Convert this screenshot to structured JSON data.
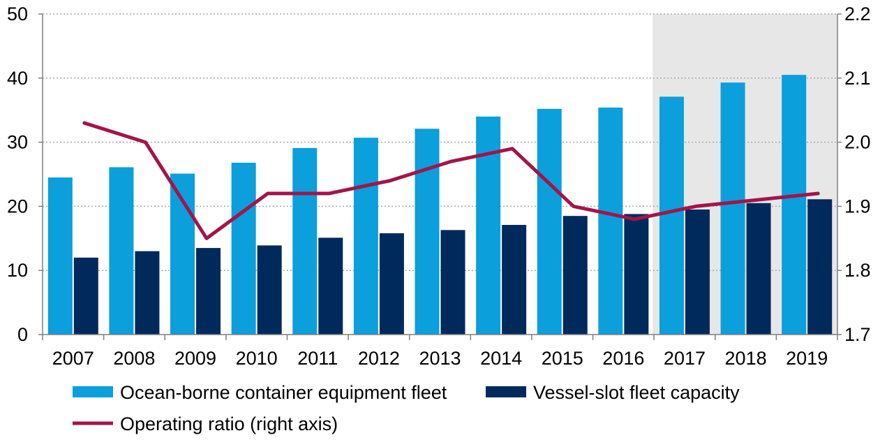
{
  "chart_data": {
    "type": "bar",
    "title": "",
    "categories": [
      "2007",
      "2008",
      "2009",
      "2010",
      "2011",
      "2012",
      "2013",
      "2014",
      "2015",
      "2016",
      "2017",
      "2018",
      "2019"
    ],
    "forecast_start_category": "2017",
    "forecast_shade_color": "#e7e7e8",
    "left_axis": {
      "range": [
        0,
        50
      ],
      "ticks": [
        "0",
        "10",
        "20",
        "30",
        "40",
        "50"
      ],
      "values": [
        0,
        10,
        20,
        30,
        40,
        50
      ]
    },
    "right_axis": {
      "range": [
        1.7,
        2.2
      ],
      "ticks": [
        "1.7",
        "1.8",
        "1.9",
        "2.0",
        "2.1",
        "2.2"
      ],
      "values": [
        1.7,
        1.8,
        1.9,
        2.0,
        2.1,
        2.2
      ]
    },
    "gridlines": true,
    "series": [
      {
        "name": "Ocean-borne container equipment fleet",
        "kind": "bar",
        "axis": "left",
        "color": "#0b9fdb",
        "values": [
          24.5,
          26.1,
          25.1,
          26.8,
          29.1,
          30.7,
          32.1,
          34.0,
          35.2,
          35.4,
          37.1,
          39.3,
          40.5
        ]
      },
      {
        "name": "Vessel-slot fleet capacity",
        "kind": "bar",
        "axis": "left",
        "color": "#002a5c",
        "values": [
          12.0,
          13.0,
          13.5,
          13.9,
          15.1,
          15.8,
          16.3,
          17.1,
          18.5,
          18.8,
          19.5,
          20.5,
          21.1
        ]
      },
      {
        "name": "Operating ratio (right axis)",
        "kind": "line",
        "axis": "right",
        "color": "#a3144a",
        "values": [
          2.03,
          2.0,
          1.85,
          1.92,
          1.92,
          1.94,
          1.97,
          1.99,
          1.9,
          1.88,
          1.9,
          1.91,
          1.92
        ]
      }
    ],
    "legend": {
      "placement": "bottom",
      "items": [
        "Ocean-borne container equipment fleet",
        "Vessel-slot fleet capacity",
        "Operating ratio (right axis)"
      ]
    }
  }
}
